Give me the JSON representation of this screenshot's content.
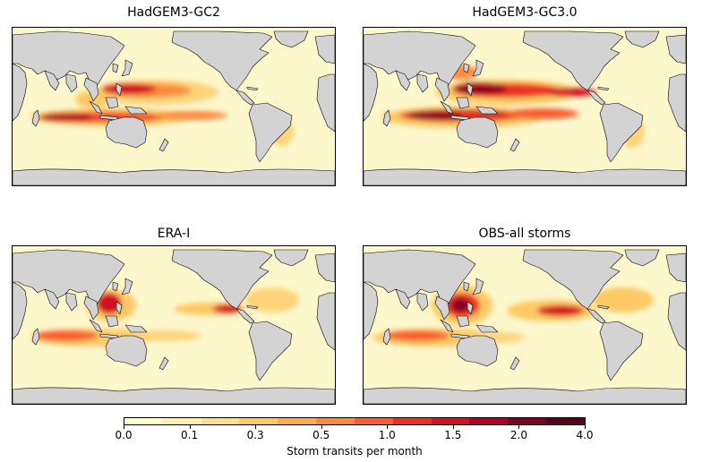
{
  "panels": [
    {
      "title": "HadGEM3-GC2"
    },
    {
      "title": "HadGEM3-GC3.0"
    },
    {
      "title": "ERA-I"
    },
    {
      "title": "OBS-all storms"
    }
  ],
  "colorbar": {
    "label": "Storm transits per month",
    "ticks": [
      "0.0",
      "0.1",
      "0.3",
      "0.5",
      "1.0",
      "1.5",
      "2.0",
      "4.0"
    ],
    "colors": [
      "#ffffcc",
      "#fff1a8",
      "#fee087",
      "#fec965",
      "#feab4b",
      "#fd893c",
      "#fa5c2e",
      "#ec3023",
      "#d31121",
      "#af0225",
      "#800026",
      "#5c0022"
    ]
  },
  "colors": {
    "land": "#d3d3d3",
    "ocean_low": "#fdf7cc"
  }
}
